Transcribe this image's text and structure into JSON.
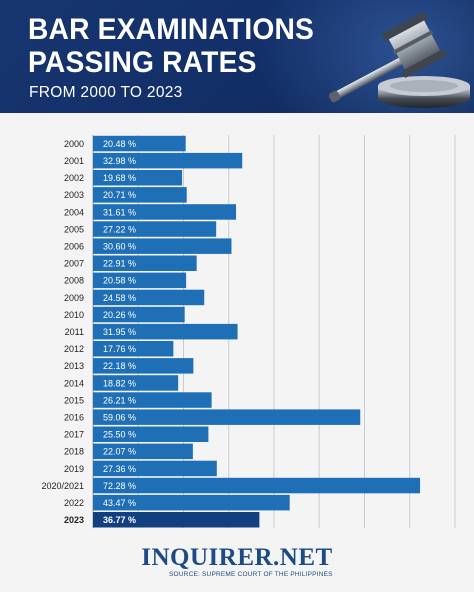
{
  "header": {
    "title_line1": "BAR EXAMINATIONS",
    "title_line2": "PASSING RATES",
    "subtitle": "FROM 2000 TO 2023"
  },
  "footer": {
    "logo": "INQUIRER.NET",
    "source": "SOURCE: SUPREME COURT OF THE PHILIPPINES"
  },
  "colors": {
    "header_bg": "#15336c",
    "bar": "#1f6fb6",
    "bar_highlight": "#123f80",
    "gridline": "#c8cbd2",
    "label_text": "#222222",
    "footer": "#1d4b86"
  },
  "chart_data": {
    "type": "bar",
    "orientation": "horizontal",
    "title": "BAR EXAMINATIONS PASSING RATES",
    "subtitle": "FROM 2000 TO 2023",
    "xlabel": "",
    "ylabel": "",
    "xlim": [
      0,
      80
    ],
    "grid": true,
    "categories": [
      "2000",
      "2001",
      "2002",
      "2003",
      "2004",
      "2005",
      "2006",
      "2007",
      "2008",
      "2009",
      "2010",
      "2011",
      "2012",
      "2013",
      "2014",
      "2015",
      "2016",
      "2017",
      "2018",
      "2019",
      "2020/2021",
      "2022",
      "2023"
    ],
    "values": [
      20.48,
      32.98,
      19.68,
      20.71,
      31.61,
      27.22,
      30.6,
      22.91,
      20.58,
      24.58,
      20.26,
      31.95,
      17.76,
      22.18,
      18.82,
      26.21,
      59.06,
      25.5,
      22.07,
      27.36,
      72.28,
      43.47,
      36.77
    ],
    "value_labels": [
      "20.48 %",
      "32.98 %",
      "19.68 %",
      "20.71 %",
      "31.61 %",
      "27.22 %",
      "30.60 %",
      "22.91 %",
      "20.58 %",
      "24.58 %",
      "20.26 %",
      "31.95 %",
      "17.76 %",
      "22.18 %",
      "18.82 %",
      "26.21 %",
      "59.06 %",
      "25.50 %",
      "22.07 %",
      "27.36 %",
      "72.28 %",
      "43.47 %",
      "36.77 %"
    ],
    "highlight": "2023"
  }
}
